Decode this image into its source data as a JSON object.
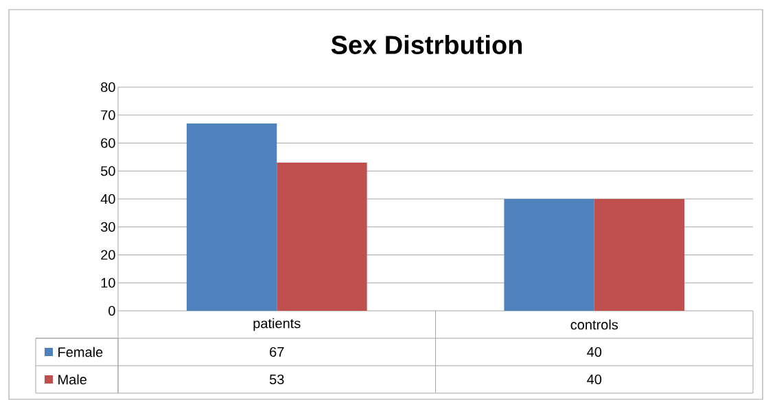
{
  "chart_data": {
    "type": "bar",
    "title": "Sex Distrbution",
    "categories": [
      "patients",
      "controls"
    ],
    "series": [
      {
        "name": "Female",
        "color": "#4f81bd",
        "values": [
          67,
          40
        ]
      },
      {
        "name": "Male",
        "color": "#c0504d",
        "values": [
          53,
          40
        ]
      }
    ],
    "ylim": [
      0,
      80
    ],
    "yticks": [
      0,
      10,
      20,
      30,
      40,
      50,
      60,
      70,
      80
    ],
    "grid": "y",
    "legend": "bottom",
    "data_labels": true
  }
}
